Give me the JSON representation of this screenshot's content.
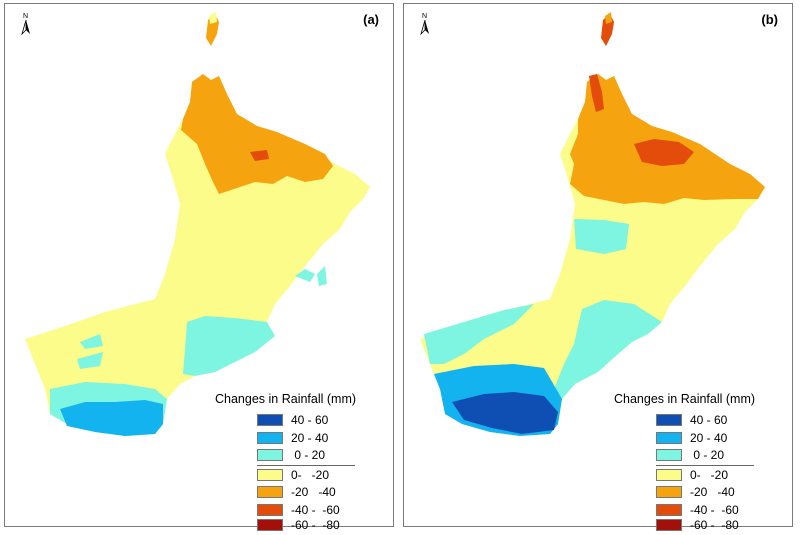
{
  "panels": [
    {
      "label": "(a)",
      "north": "N",
      "legend": {
        "title": "Changes in Rainfall (mm)",
        "items": [
          {
            "label": "40 - 60",
            "color": "#0f4fb3"
          },
          {
            "label": "20 - 40",
            "color": "#13b3f0"
          },
          {
            "label": " 0 - 20",
            "color": "#7ef5e1"
          },
          {
            "label": "0-   -20",
            "color": "#fbfc8a"
          },
          {
            "label": "-20   -40",
            "color": "#f5a40f"
          },
          {
            "label": "-40 -  -60",
            "color": "#e34c0b"
          },
          {
            "label": "-60 -  -80",
            "color": "#a3100a"
          }
        ]
      }
    },
    {
      "label": "(b)",
      "north": "N",
      "legend": {
        "title": "Changes in Rainfall (mm)",
        "items": [
          {
            "label": "40 - 60",
            "color": "#0f4fb3"
          },
          {
            "label": "20 - 40",
            "color": "#13b3f0"
          },
          {
            "label": " 0 - 20",
            "color": "#7ef5e1"
          },
          {
            "label": "0-   -20",
            "color": "#fbfc8a"
          },
          {
            "label": "-20   -40",
            "color": "#f5a40f"
          },
          {
            "label": "-40 -  -60",
            "color": "#e34c0b"
          },
          {
            "label": "-60 -  -80",
            "color": "#a3100a"
          }
        ]
      }
    }
  ]
}
